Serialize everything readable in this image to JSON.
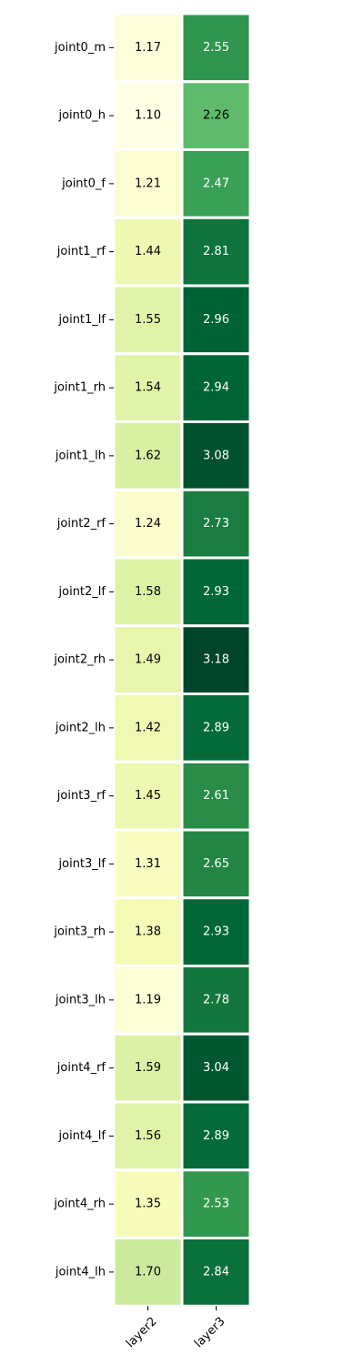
{
  "chart_data": {
    "type": "heatmap",
    "title": "",
    "xlabel": "",
    "ylabel": "",
    "rows": [
      "joint0_m",
      "joint0_h",
      "joint0_f",
      "joint1_rf",
      "joint1_lf",
      "joint1_rh",
      "joint1_lh",
      "joint2_rf",
      "joint2_lf",
      "joint2_rh",
      "joint2_lh",
      "joint3_rf",
      "joint3_lf",
      "joint3_rh",
      "joint3_lh",
      "joint4_rf",
      "joint4_lf",
      "joint4_rh",
      "joint4_lh"
    ],
    "columns": [
      "layer2",
      "layer3"
    ],
    "values": [
      [
        1.17,
        2.55
      ],
      [
        1.1,
        2.26
      ],
      [
        1.21,
        2.47
      ],
      [
        1.44,
        2.81
      ],
      [
        1.55,
        2.96
      ],
      [
        1.54,
        2.94
      ],
      [
        1.62,
        3.08
      ],
      [
        1.24,
        2.73
      ],
      [
        1.58,
        2.93
      ],
      [
        1.49,
        3.18
      ],
      [
        1.42,
        2.89
      ],
      [
        1.45,
        2.61
      ],
      [
        1.31,
        2.65
      ],
      [
        1.38,
        2.93
      ],
      [
        1.19,
        2.78
      ],
      [
        1.59,
        3.04
      ],
      [
        1.56,
        2.89
      ],
      [
        1.35,
        2.53
      ],
      [
        1.7,
        2.84
      ]
    ],
    "value_format": "0.00",
    "colormap": "YlGn",
    "colormap_stops": [
      "#ffffe5",
      "#f7fcb9",
      "#d9f0a3",
      "#addd8e",
      "#78c679",
      "#41ab5d",
      "#238443",
      "#006837",
      "#004529"
    ],
    "value_range": [
      1.1,
      3.18
    ],
    "colorbar": false,
    "cell_separator_color": "#ffffff"
  }
}
